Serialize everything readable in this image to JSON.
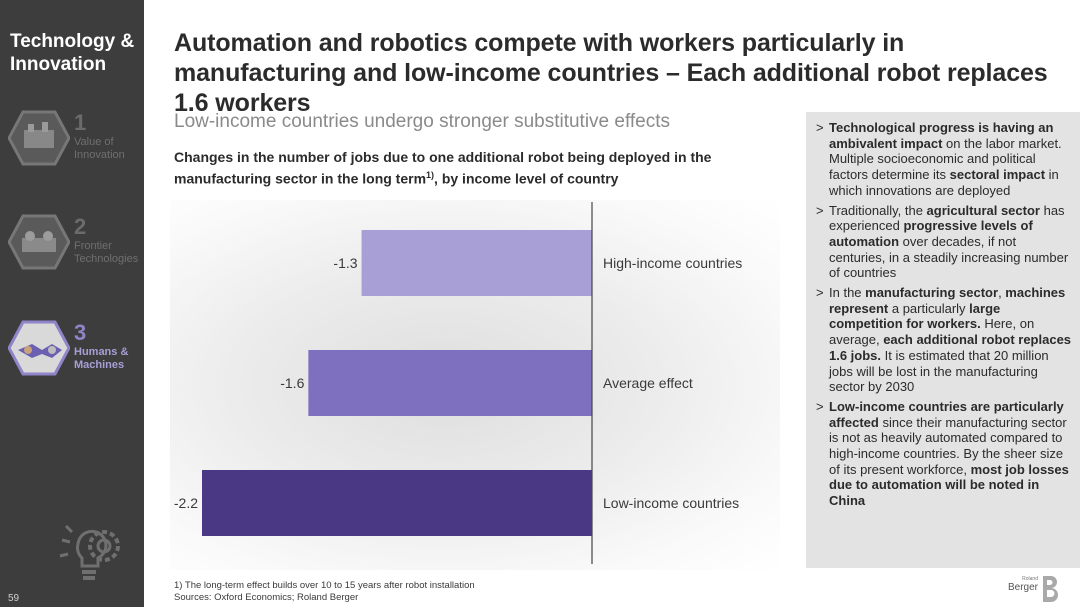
{
  "sidebar": {
    "title": "Technology & Innovation",
    "items": [
      {
        "number": "1",
        "label": "Value of Innovation",
        "active": false
      },
      {
        "number": "2",
        "label": "Frontier Technologies",
        "active": false
      },
      {
        "number": "3",
        "label": "Humans & Machines",
        "active": true
      }
    ],
    "page_number": "59"
  },
  "header": {
    "title": "Automation and robotics compete with workers particularly in manufacturing and low-income countries – Each additional robot replaces 1.6 workers",
    "subtitle": "Low-income countries undergo stronger substitutive effects"
  },
  "chart_heading": {
    "text": "Changes in the number of jobs due to one additional robot being deployed in the manufacturing sector in the long term",
    "superscript": "1)",
    "text_after": ", by income level of country"
  },
  "chart_data": {
    "type": "bar",
    "orientation": "horizontal",
    "categories": [
      "High-income countries",
      "Average effect",
      "Low-income countries"
    ],
    "values": [
      -1.3,
      -1.6,
      -2.2
    ],
    "value_labels": [
      "-1.3",
      "-1.6",
      "-2.2"
    ],
    "colors": [
      "#a79fd6",
      "#7e6fbf",
      "#4a3884"
    ],
    "xlim": [
      -2.2,
      0
    ],
    "grid": false,
    "legend": "none"
  },
  "panel": {
    "bullets": [
      [
        {
          "t": "Technological progress is having an ambivalent impact",
          "b": true
        },
        {
          "t": " on the labor market. Multiple socioeconomic and political factors determine its ",
          "b": false
        },
        {
          "t": "sectoral impact",
          "b": true
        },
        {
          "t": " in which innovations are deployed",
          "b": false
        }
      ],
      [
        {
          "t": "Traditionally, the ",
          "b": false
        },
        {
          "t": "agricultural sector",
          "b": true
        },
        {
          "t": " has experienced ",
          "b": false
        },
        {
          "t": "progressive levels of automation",
          "b": true
        },
        {
          "t": " over decades, if not centuries, in a steadily increasing number of countries",
          "b": false
        }
      ],
      [
        {
          "t": "In the ",
          "b": false
        },
        {
          "t": "manufacturing sector",
          "b": true
        },
        {
          "t": ", ",
          "b": false
        },
        {
          "t": "machines represent",
          "b": true
        },
        {
          "t": " a particularly ",
          "b": false
        },
        {
          "t": "large competition for workers.",
          "b": true
        },
        {
          "t": " Here, on average, ",
          "b": false
        },
        {
          "t": "each additional robot replaces 1.6 jobs.",
          "b": true
        },
        {
          "t": " It is estimated that 20 million jobs will be lost in the manufacturing sector by 2030",
          "b": false
        }
      ],
      [
        {
          "t": "Low-income countries are particularly affected",
          "b": true
        },
        {
          "t": " since their manufacturing sector is not as heavily automated compared to high-income countries. By the sheer size of its present workforce, ",
          "b": false
        },
        {
          "t": "most job losses due to automation will be noted in China",
          "b": true
        }
      ]
    ]
  },
  "footer": {
    "footnote": "1) The long-term effect builds over 10 to 15 years after robot installation",
    "sources": "Sources: Oxford Economics; Roland Berger"
  },
  "logo": {
    "small": "Roland",
    "name": "Berger"
  }
}
